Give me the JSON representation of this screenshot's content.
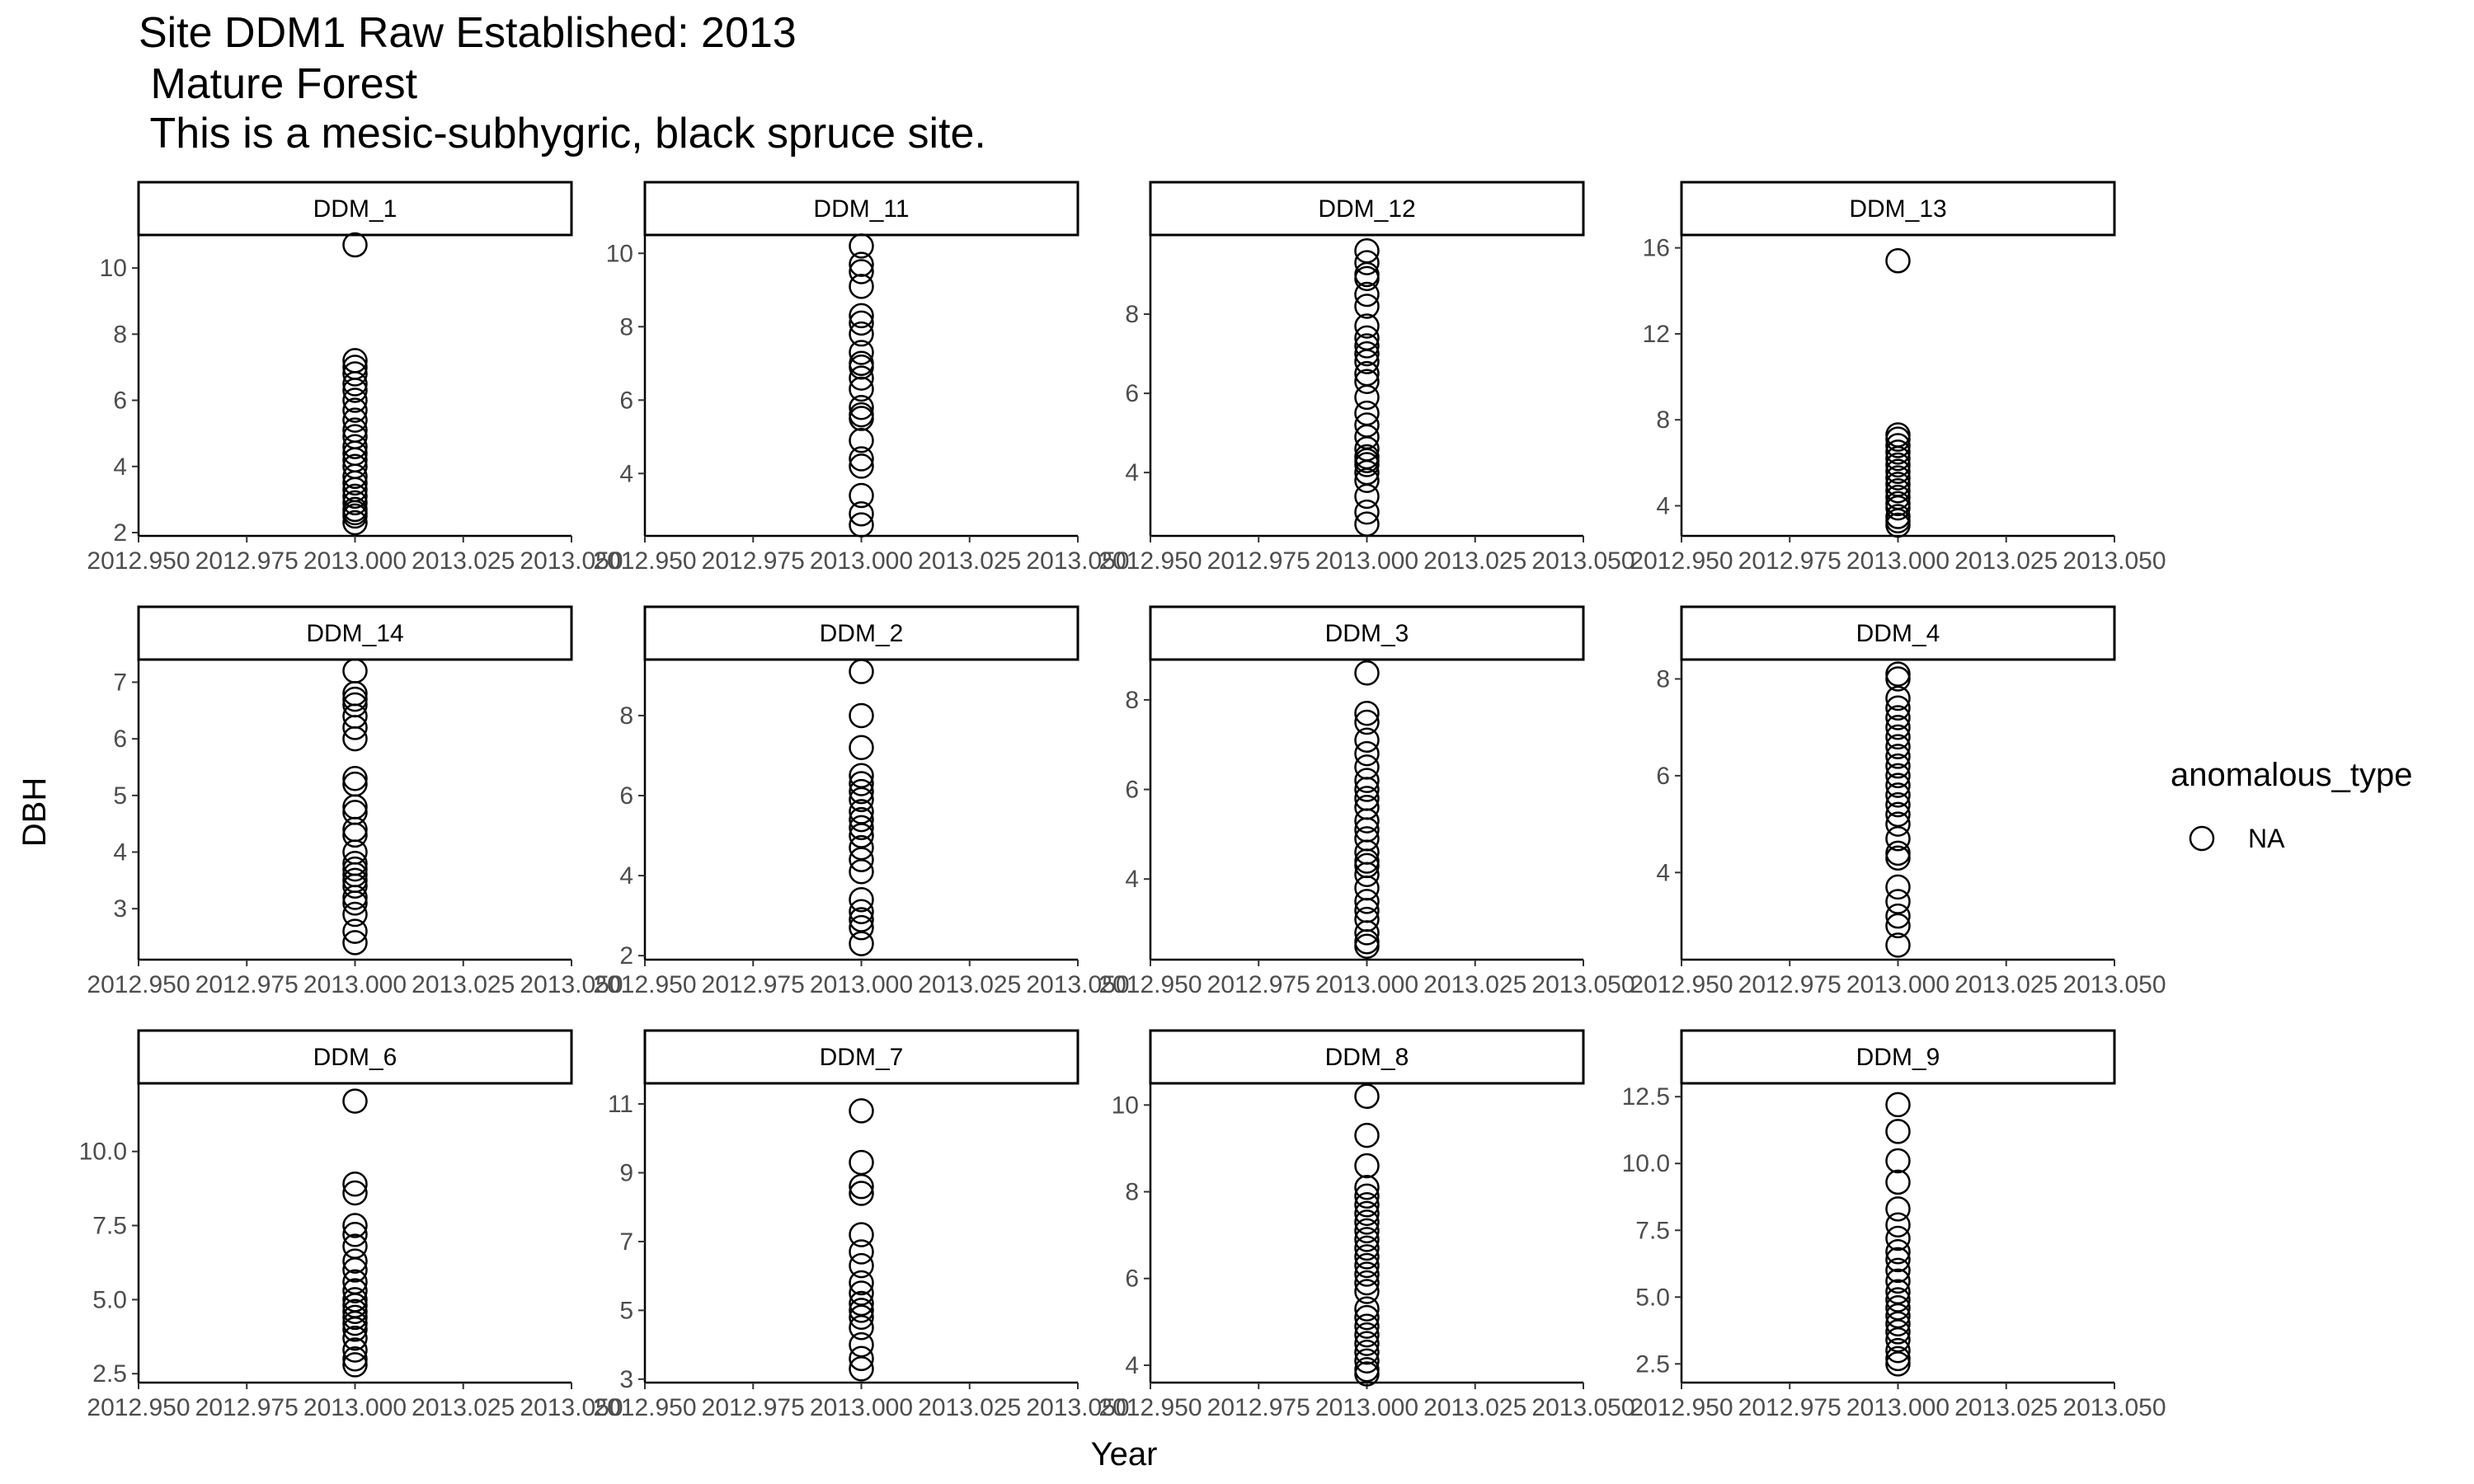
{
  "title": {
    "line1": "Site DDM1 Raw Established: 2013",
    "line2": " Mature Forest",
    "line3": " This is a mesic-subhygric, black spruce site."
  },
  "chart_data": {
    "type": "scatter",
    "facet_layout": "3 rows x 4 columns",
    "xlabel": "Year",
    "ylabel": "DBH",
    "xlim": [
      2012.95,
      2013.05
    ],
    "x_ticks": [
      "2012.950",
      "2012.975",
      "2013.000",
      "2013.025",
      "2013.050"
    ],
    "legend": {
      "title": "anomalous_type",
      "entries": [
        "NA"
      ],
      "placement": "right",
      "marker": "open-circle"
    },
    "grid": false,
    "panels": [
      {
        "name": "DDM_1",
        "ylim": [
          1.9,
          11.0
        ],
        "y_ticks": [
          2,
          4,
          6,
          8,
          10
        ],
        "x": 2013.0,
        "y": [
          10.7,
          7.2,
          7.0,
          6.8,
          6.5,
          6.3,
          6.0,
          5.7,
          5.4,
          5.1,
          4.9,
          4.6,
          4.4,
          4.2,
          4.0,
          3.7,
          3.5,
          3.3,
          3.1,
          2.9,
          2.7,
          2.6,
          2.5,
          2.3
        ]
      },
      {
        "name": "DDM_11",
        "ylim": [
          2.3,
          10.5
        ],
        "y_ticks": [
          4,
          6,
          8,
          10
        ],
        "x": 2013.0,
        "y": [
          10.2,
          9.7,
          9.5,
          9.1,
          8.3,
          8.1,
          7.8,
          7.3,
          7.0,
          6.9,
          6.6,
          6.3,
          5.8,
          5.6,
          5.5,
          4.9,
          4.4,
          4.2,
          3.4,
          2.9,
          2.6
        ]
      },
      {
        "name": "DDM_12",
        "ylim": [
          2.4,
          10.0
        ],
        "y_ticks": [
          4,
          6,
          8
        ],
        "x": 2013.0,
        "y": [
          9.6,
          9.3,
          9.0,
          8.9,
          8.5,
          8.2,
          7.7,
          7.4,
          7.2,
          7.0,
          6.8,
          6.5,
          6.3,
          5.9,
          5.5,
          5.2,
          4.9,
          4.6,
          4.4,
          4.3,
          4.2,
          4.0,
          3.8,
          3.4,
          3.0,
          2.7
        ]
      },
      {
        "name": "DDM_13",
        "ylim": [
          2.6,
          16.6
        ],
        "y_ticks": [
          4,
          8,
          12,
          16
        ],
        "x": 2013.0,
        "y": [
          15.4,
          7.3,
          7.1,
          6.8,
          6.5,
          6.2,
          5.9,
          5.6,
          5.3,
          5.0,
          4.7,
          4.4,
          4.1,
          3.9,
          3.5,
          3.3,
          3.1
        ]
      },
      {
        "name": "DDM_14",
        "ylim": [
          2.1,
          7.4
        ],
        "y_ticks": [
          3,
          4,
          5,
          6,
          7
        ],
        "x": 2013.0,
        "y": [
          7.2,
          6.8,
          6.7,
          6.6,
          6.4,
          6.2,
          6.0,
          5.3,
          5.2,
          4.8,
          4.7,
          4.4,
          4.3,
          4.0,
          3.8,
          3.7,
          3.6,
          3.5,
          3.4,
          3.2,
          3.1,
          2.9,
          2.6,
          2.4
        ]
      },
      {
        "name": "DDM_2",
        "ylim": [
          1.9,
          9.4
        ],
        "y_ticks": [
          2,
          4,
          6,
          8
        ],
        "x": 2013.0,
        "y": [
          9.1,
          8.0,
          7.2,
          6.5,
          6.3,
          6.1,
          5.9,
          5.6,
          5.4,
          5.2,
          5.0,
          4.7,
          4.4,
          4.1,
          3.4,
          3.1,
          2.9,
          2.7,
          2.3
        ]
      },
      {
        "name": "DDM_3",
        "ylim": [
          2.2,
          8.9
        ],
        "y_ticks": [
          4,
          6,
          8
        ],
        "x": 2013.0,
        "y": [
          8.6,
          7.7,
          7.5,
          7.1,
          6.8,
          6.5,
          6.2,
          6.0,
          5.8,
          5.6,
          5.3,
          5.1,
          4.9,
          4.6,
          4.4,
          4.3,
          4.1,
          3.8,
          3.5,
          3.3,
          3.1,
          2.8,
          2.6,
          2.5
        ]
      },
      {
        "name": "DDM_4",
        "ylim": [
          2.2,
          8.4
        ],
        "y_ticks": [
          4,
          6,
          8
        ],
        "x": 2013.0,
        "y": [
          8.1,
          8.0,
          7.6,
          7.4,
          7.2,
          7.0,
          6.8,
          6.6,
          6.4,
          6.2,
          6.0,
          5.8,
          5.6,
          5.4,
          5.2,
          5.0,
          4.7,
          4.4,
          4.3,
          3.7,
          3.4,
          3.1,
          2.9,
          2.5
        ]
      },
      {
        "name": "DDM_6",
        "ylim": [
          2.2,
          12.3
        ],
        "y_ticks": [
          "2.5",
          "5.0",
          "7.5",
          "10.0"
        ],
        "x": 2013.0,
        "y": [
          11.7,
          8.9,
          8.6,
          7.5,
          7.2,
          6.8,
          6.3,
          6.0,
          5.6,
          5.3,
          5.0,
          4.8,
          4.6,
          4.4,
          4.2,
          4.0,
          3.7,
          3.3,
          3.0,
          2.8
        ]
      },
      {
        "name": "DDM_7",
        "ylim": [
          2.9,
          11.6
        ],
        "y_ticks": [
          3,
          5,
          7,
          9,
          11
        ],
        "x": 2013.0,
        "y": [
          10.8,
          9.3,
          8.6,
          8.4,
          7.2,
          6.7,
          6.3,
          5.8,
          5.5,
          5.2,
          5.0,
          4.8,
          4.5,
          4.0,
          3.6,
          3.3
        ]
      },
      {
        "name": "DDM_8",
        "ylim": [
          3.6,
          10.5
        ],
        "y_ticks": [
          4,
          6,
          8,
          10
        ],
        "x": 2013.0,
        "y": [
          10.2,
          9.3,
          8.6,
          8.1,
          7.9,
          7.7,
          7.5,
          7.3,
          7.1,
          6.9,
          6.7,
          6.5,
          6.3,
          6.1,
          5.9,
          5.7,
          5.3,
          5.1,
          4.9,
          4.7,
          4.5,
          4.3,
          4.1,
          3.9,
          3.8
        ]
      },
      {
        "name": "DDM_9",
        "ylim": [
          1.8,
          13.0
        ],
        "y_ticks": [
          "2.5",
          "5.0",
          "7.5",
          "10.0",
          "12.5"
        ],
        "x": 2013.0,
        "y": [
          12.2,
          11.2,
          10.1,
          9.3,
          8.3,
          7.7,
          7.2,
          6.7,
          6.4,
          6.0,
          5.6,
          5.2,
          4.9,
          4.6,
          4.3,
          4.0,
          3.7,
          3.4,
          3.0,
          2.7,
          2.5
        ]
      }
    ]
  }
}
